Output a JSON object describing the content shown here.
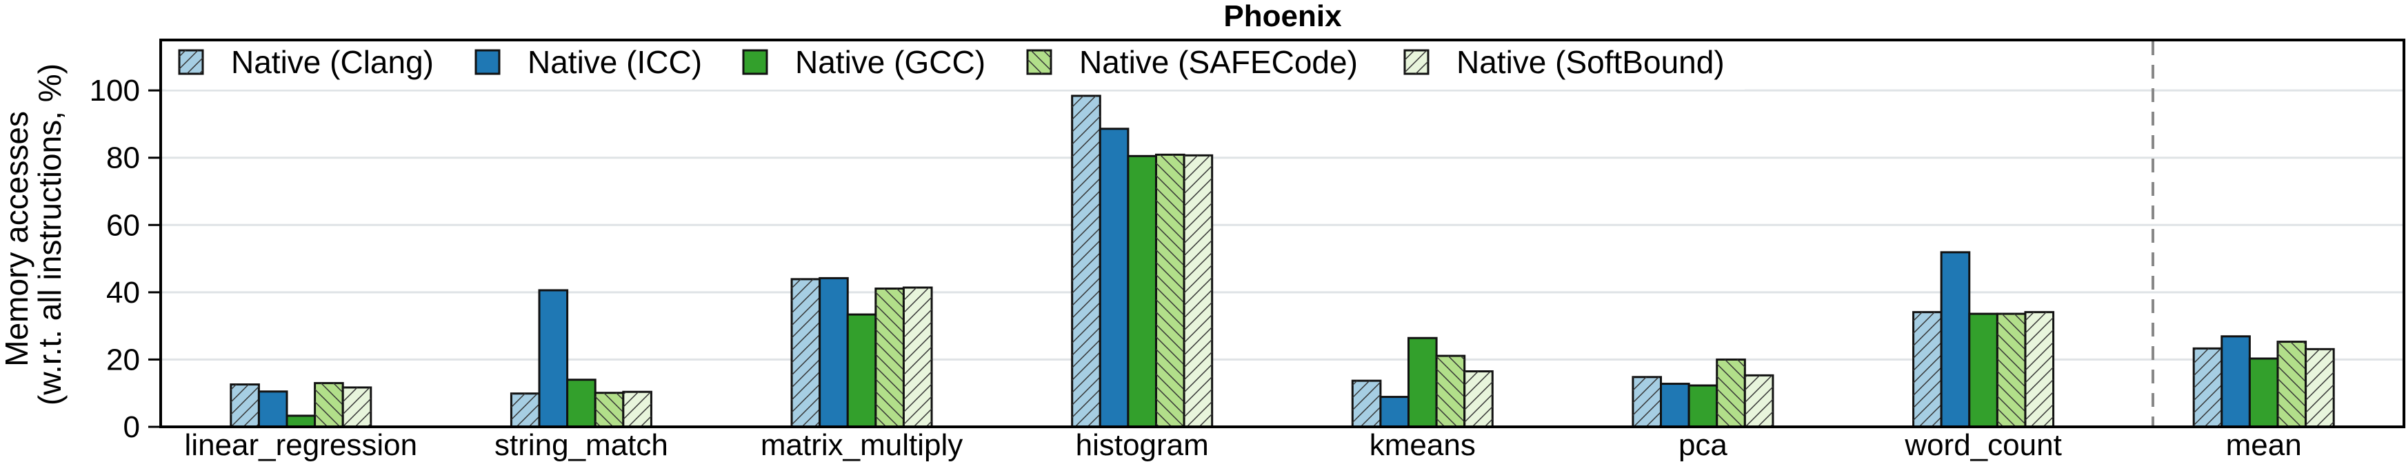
{
  "chart_data": {
    "type": "bar",
    "title": "Phoenix",
    "ylabel": [
      "Memory accesses",
      "(w.r.t. all instructions, %)"
    ],
    "xlabel": "",
    "ylim": [
      0,
      115
    ],
    "yticks": [
      0,
      20,
      40,
      60,
      80,
      100
    ],
    "grid": true,
    "legend_placement": "top-left",
    "categories": [
      "linear_regression",
      "string_match",
      "matrix_multiply",
      "histogram",
      "kmeans",
      "pca",
      "word_count",
      "mean"
    ],
    "separator_before": "mean",
    "series": [
      {
        "name": "Native (Clang)",
        "color": "#a6cee3",
        "hatch": "forward",
        "values": [
          12.6,
          9.9,
          43.9,
          98.4,
          13.7,
          14.8,
          34.1,
          23.3
        ]
      },
      {
        "name": "Native (ICC)",
        "color": "#1f78b4",
        "hatch": "none",
        "values": [
          10.5,
          40.6,
          44.2,
          88.6,
          8.9,
          12.8,
          51.9,
          26.9
        ]
      },
      {
        "name": "Native (GCC)",
        "color": "#33a02c",
        "hatch": "none",
        "values": [
          3.3,
          14.0,
          33.4,
          80.5,
          26.4,
          12.3,
          33.6,
          20.3
        ]
      },
      {
        "name": "Native (SAFECode)",
        "color": "#b2df8a",
        "hatch": "back",
        "values": [
          13.0,
          10.1,
          41.1,
          80.9,
          21.1,
          20.0,
          33.6,
          25.3
        ]
      },
      {
        "name": "Native (SoftBound)",
        "color": "#e8f5dc",
        "hatch": "forward",
        "values": [
          11.7,
          10.4,
          41.4,
          80.7,
          16.5,
          15.3,
          34.1,
          23.1
        ]
      }
    ]
  }
}
